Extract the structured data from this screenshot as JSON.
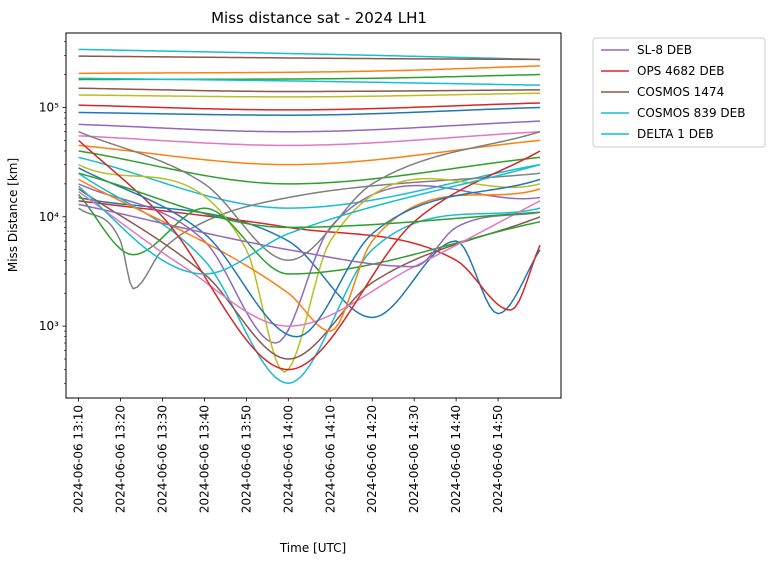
{
  "chart_data": {
    "type": "line",
    "title": "Miss distance sat - 2024 LH1",
    "xlabel": "Time [UTC]",
    "ylabel": "Miss Distance [km]",
    "yscale": "log",
    "ylim": [
      220,
      480000
    ],
    "xlim": [
      "2024-06-06 13:07",
      "2024-06-06 15:05"
    ],
    "x_start": "2024-06-06 13:10",
    "x_end": "2024-06-06 15:00",
    "x_ticks": [
      "2024-06-06 13:10",
      "2024-06-06 13:20",
      "2024-06-06 13:30",
      "2024-06-06 13:40",
      "2024-06-06 13:50",
      "2024-06-06 14:00",
      "2024-06-06 14:10",
      "2024-06-06 14:20",
      "2024-06-06 14:30",
      "2024-06-06 14:40",
      "2024-06-06 14:50"
    ],
    "y_ticks": [
      {
        "value": 1000,
        "label": "10³"
      },
      {
        "value": 10000,
        "label": "10⁴"
      },
      {
        "value": 100000,
        "label": "10⁵"
      }
    ],
    "grid": false,
    "legend_position": "outside-upper-right",
    "legend": [
      {
        "name": "SL-8 DEB",
        "color": "#9467bd"
      },
      {
        "name": "OPS 4682 DEB",
        "color": "#d62728"
      },
      {
        "name": "COSMOS 1474",
        "color": "#8c564b"
      },
      {
        "name": "COSMOS 839 DEB",
        "color": "#17becf"
      },
      {
        "name": "DELTA 1 DEB",
        "color": "#17becf"
      }
    ],
    "series": [
      {
        "color": "#17becf",
        "x": [
          "2024-06-06 13:10",
          "2024-06-06 14:20",
          "2024-06-06 15:00"
        ],
        "y": [
          340000,
          300000,
          275000
        ]
      },
      {
        "color": "#8c564b",
        "x": [
          "2024-06-06 13:10",
          "2024-06-06 14:20",
          "2024-06-06 15:00"
        ],
        "y": [
          295000,
          280000,
          275000
        ]
      },
      {
        "color": "#ff7f0e",
        "x": [
          "2024-06-06 13:10",
          "2024-06-06 14:20",
          "2024-06-06 15:00"
        ],
        "y": [
          205000,
          215000,
          240000
        ]
      },
      {
        "color": "#2ca02c",
        "x": [
          "2024-06-06 13:10",
          "2024-06-06 14:20",
          "2024-06-06 15:00"
        ],
        "y": [
          180000,
          185000,
          200000
        ]
      },
      {
        "color": "#17becf",
        "x": [
          "2024-06-06 13:10",
          "2024-06-06 14:00",
          "2024-06-06 15:00"
        ],
        "y": [
          185000,
          175000,
          160000
        ]
      },
      {
        "color": "#8c564b",
        "x": [
          "2024-06-06 13:10",
          "2024-06-06 14:00",
          "2024-06-06 15:00"
        ],
        "y": [
          150000,
          140000,
          145000
        ]
      },
      {
        "color": "#bcbd22",
        "x": [
          "2024-06-06 13:10",
          "2024-06-06 14:00",
          "2024-06-06 15:00"
        ],
        "y": [
          130000,
          125000,
          135000
        ]
      },
      {
        "color": "#d62728",
        "x": [
          "2024-06-06 13:10",
          "2024-06-06 14:00",
          "2024-06-06 15:00"
        ],
        "y": [
          105000,
          95000,
          110000
        ]
      },
      {
        "color": "#1f77b4",
        "x": [
          "2024-06-06 13:10",
          "2024-06-06 14:00",
          "2024-06-06 15:00"
        ],
        "y": [
          90000,
          85000,
          100000
        ]
      },
      {
        "color": "#9467bd",
        "x": [
          "2024-06-06 13:10",
          "2024-06-06 14:00",
          "2024-06-06 15:00"
        ],
        "y": [
          70000,
          60000,
          75000
        ]
      },
      {
        "color": "#e377c2",
        "x": [
          "2024-06-06 13:10",
          "2024-06-06 14:00",
          "2024-06-06 15:00"
        ],
        "y": [
          55000,
          45000,
          60000
        ]
      },
      {
        "color": "#ff7f0e",
        "x": [
          "2024-06-06 13:10",
          "2024-06-06 14:00",
          "2024-06-06 15:00"
        ],
        "y": [
          45000,
          30000,
          50000
        ]
      },
      {
        "color": "#2ca02c",
        "x": [
          "2024-06-06 13:10",
          "2024-06-06 14:00",
          "2024-06-06 15:00"
        ],
        "y": [
          40000,
          20000,
          35000
        ]
      },
      {
        "color": "#17becf",
        "x": [
          "2024-06-06 13:10",
          "2024-06-06 14:00",
          "2024-06-06 15:00"
        ],
        "y": [
          35000,
          12000,
          30000
        ]
      },
      {
        "color": "#7f7f7f",
        "x": [
          "2024-06-06 13:10",
          "2024-06-06 13:20",
          "2024-06-06 13:23",
          "2024-06-06 13:30",
          "2024-06-06 13:40",
          "2024-06-06 14:00",
          "2024-06-06 15:00"
        ],
        "y": [
          12000,
          6000,
          2200,
          5000,
          9000,
          15000,
          25000
        ]
      },
      {
        "color": "#1f77b4",
        "x": [
          "2024-06-06 13:10",
          "2024-06-06 14:00",
          "2024-06-06 14:20",
          "2024-06-06 14:40",
          "2024-06-06 14:50",
          "2024-06-06 15:00"
        ],
        "y": [
          15000,
          6000,
          1200,
          6000,
          1300,
          5000
        ]
      },
      {
        "color": "#d62728",
        "x": [
          "2024-06-06 13:10",
          "2024-06-06 14:00",
          "2024-06-06 14:40",
          "2024-06-06 14:53",
          "2024-06-06 15:00"
        ],
        "y": [
          14000,
          8000,
          4000,
          1400,
          5500
        ]
      },
      {
        "color": "#9467bd",
        "x": [
          "2024-06-06 13:10",
          "2024-06-06 13:40",
          "2024-06-06 13:57",
          "2024-06-06 14:10",
          "2024-06-06 15:00"
        ],
        "y": [
          20000,
          6000,
          700,
          8000,
          15000
        ]
      },
      {
        "color": "#17becf",
        "x": [
          "2024-06-06 13:10",
          "2024-06-06 13:40",
          "2024-06-06 14:00",
          "2024-06-06 14:20",
          "2024-06-06 15:00"
        ],
        "y": [
          25000,
          4000,
          300,
          5000,
          12000
        ]
      },
      {
        "color": "#bcbd22",
        "x": [
          "2024-06-06 13:10",
          "2024-06-06 13:50",
          "2024-06-06 13:59",
          "2024-06-06 14:10",
          "2024-06-06 15:00"
        ],
        "y": [
          30000,
          5000,
          380,
          6000,
          20000
        ]
      },
      {
        "color": "#8c564b",
        "x": [
          "2024-06-06 13:10",
          "2024-06-06 13:40",
          "2024-06-06 14:00",
          "2024-06-06 14:20",
          "2024-06-06 15:00"
        ],
        "y": [
          18000,
          3000,
          500,
          2500,
          10000
        ]
      },
      {
        "color": "#2ca02c",
        "x": [
          "2024-06-06 13:10",
          "2024-06-06 13:23",
          "2024-06-06 13:40",
          "2024-06-06 14:00",
          "2024-06-06 15:00"
        ],
        "y": [
          16000,
          4500,
          12000,
          3000,
          9000
        ]
      },
      {
        "color": "#ff7f0e",
        "x": [
          "2024-06-06 13:10",
          "2024-06-06 14:00",
          "2024-06-06 14:10",
          "2024-06-06 14:20",
          "2024-06-06 15:00"
        ],
        "y": [
          22000,
          2000,
          900,
          6000,
          18000
        ]
      },
      {
        "color": "#e377c2",
        "x": [
          "2024-06-06 13:10",
          "2024-06-06 13:35",
          "2024-06-06 14:00",
          "2024-06-06 14:30",
          "2024-06-06 15:00"
        ],
        "y": [
          17000,
          3500,
          1000,
          3500,
          14000
        ]
      },
      {
        "color": "#d62728",
        "x": [
          "2024-06-06 13:10",
          "2024-06-06 13:30",
          "2024-06-06 14:00",
          "2024-06-06 14:30",
          "2024-06-06 15:00"
        ],
        "y": [
          50000,
          10000,
          400,
          9000,
          40000
        ]
      },
      {
        "color": "#1f77b4",
        "x": [
          "2024-06-06 13:10",
          "2024-06-06 13:40",
          "2024-06-06 14:02",
          "2024-06-06 14:20",
          "2024-06-06 15:00"
        ],
        "y": [
          28000,
          7000,
          800,
          7000,
          22000
        ]
      },
      {
        "color": "#9467bd",
        "x": [
          "2024-06-06 13:10",
          "2024-06-06 14:00",
          "2024-06-06 14:30",
          "2024-06-06 14:40",
          "2024-06-06 15:00"
        ],
        "y": [
          13000,
          5000,
          3500,
          8000,
          11000
        ]
      },
      {
        "color": "#7f7f7f",
        "x": [
          "2024-06-06 13:10",
          "2024-06-06 13:40",
          "2024-06-06 14:00",
          "2024-06-06 14:20",
          "2024-06-06 15:00"
        ],
        "y": [
          60000,
          20000,
          4000,
          20000,
          60000
        ]
      },
      {
        "color": "#17becf",
        "x": [
          "2024-06-06 13:10",
          "2024-06-06 13:30",
          "2024-06-06 13:40",
          "2024-06-06 14:00",
          "2024-06-06 15:00"
        ],
        "y": [
          19000,
          4000,
          3000,
          7000,
          30000
        ]
      },
      {
        "color": "#2ca02c",
        "x": [
          "2024-06-06 13:10",
          "2024-06-06 14:00",
          "2024-06-06 15:00"
        ],
        "y": [
          25000,
          8000,
          11000
        ]
      }
    ]
  }
}
